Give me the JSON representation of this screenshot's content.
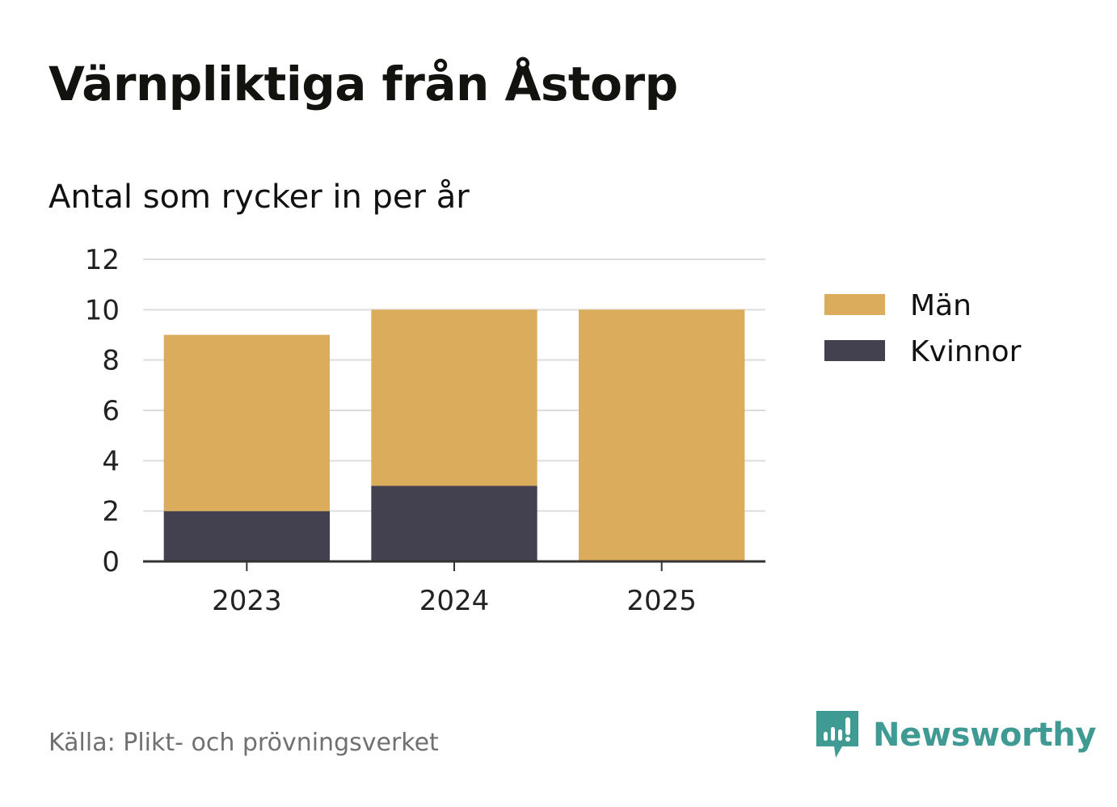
{
  "title": "Värnpliktiga från Åstorp",
  "subtitle": "Antal som rycker in per år",
  "source": "Källa: Plikt- och prövningsverket",
  "brand": "Newsworthy",
  "brand_icon": "newsworthy-logo-icon",
  "colors": {
    "man": "#dbac5b",
    "kvinnor": "#43414f",
    "grid": "#dddddd",
    "axis": "#333333",
    "brand": "#3f9a93"
  },
  "chart_data": {
    "type": "bar",
    "stacked": true,
    "categories": [
      "2023",
      "2024",
      "2025"
    ],
    "series": [
      {
        "name": "Kvinnor",
        "values": [
          2,
          3,
          0
        ]
      },
      {
        "name": "Män",
        "values": [
          7,
          7,
          10
        ]
      }
    ],
    "legend_order": [
      "Män",
      "Kvinnor"
    ],
    "ylim": [
      0,
      12
    ],
    "yticks": [
      "0",
      "2",
      "4",
      "6",
      "8",
      "10",
      "12"
    ],
    "grid": true,
    "legend_position": "right"
  }
}
